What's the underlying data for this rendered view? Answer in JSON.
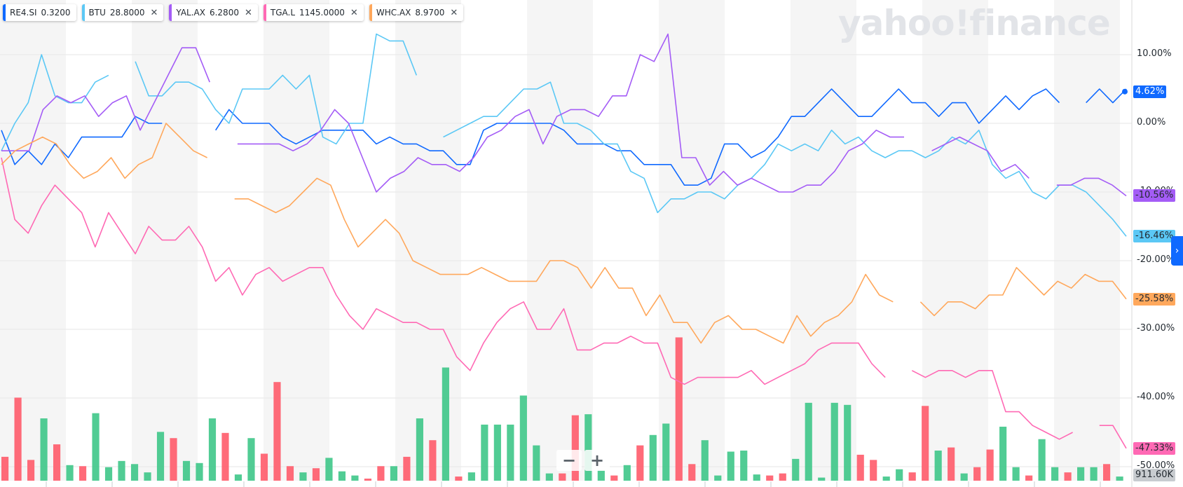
{
  "legend": [
    {
      "symbol": "RE4.SI",
      "price": "0.3200",
      "color": "#0f69ff",
      "closable": false
    },
    {
      "symbol": "BTU",
      "price": "28.8000",
      "color": "#5bc8f5",
      "closable": true
    },
    {
      "symbol": "YAL.AX",
      "price": "6.2800",
      "color": "#a45cf6",
      "closable": true
    },
    {
      "symbol": "TGA.L",
      "price": "1145.0000",
      "color": "#ff69b4",
      "closable": true
    },
    {
      "symbol": "WHC.AX",
      "price": "8.9700",
      "color": "#ffa85c",
      "closable": true
    }
  ],
  "watermark": "yahoo!finance",
  "y_axis_labels": [
    "10.00%",
    "0.00%",
    "-10.00%",
    "-20.00%",
    "-30.00%",
    "-40.00%",
    "-50.00%"
  ],
  "last_value_badges": [
    {
      "text": "4.62%",
      "color": "#0f69ff",
      "text_color": "#ffffff",
      "value": 4.62
    },
    {
      "text": "-10.56%",
      "color": "#a45cf6",
      "text_color": "#232a31",
      "value": -10.56
    },
    {
      "text": "-16.46%",
      "color": "#5bc8f5",
      "text_color": "#232a31",
      "value": -16.46
    },
    {
      "text": "-25.58%",
      "color": "#ffa85c",
      "text_color": "#232a31",
      "value": -25.58
    },
    {
      "text": "-47.33%",
      "color": "#ff69b4",
      "text_color": "#232a31",
      "value": -47.33
    }
  ],
  "volume_badge": {
    "text": "911.60K",
    "color": "#c8ccd0"
  },
  "zoom": {
    "minus": "−",
    "plus": "+"
  },
  "expand_icon": "chevron-right-icon",
  "chart_data": {
    "type": "line",
    "ylim": [
      -52,
      17
    ],
    "grid": true,
    "series": [
      {
        "name": "RE4.SI",
        "color": "#0f69ff",
        "values": [
          -1,
          -6,
          -4,
          -6,
          -3,
          -5,
          -2,
          -2,
          -2,
          -2,
          1,
          0,
          0,
          null,
          null,
          null,
          -1,
          2,
          0,
          0,
          0,
          -2,
          -3,
          -2,
          -1,
          -1,
          -1,
          -1,
          -3,
          -2,
          -3,
          -3,
          -4,
          -4,
          -6,
          -6,
          -1,
          0,
          0,
          0,
          0,
          0,
          -1,
          -3,
          -3,
          -3,
          -4,
          -4,
          -6,
          -6,
          -6,
          -9,
          -9,
          -8,
          -3,
          -3,
          -5,
          -4,
          -2,
          1,
          1,
          3,
          5,
          3,
          1,
          1,
          3,
          5,
          3,
          3,
          1,
          3,
          3,
          0,
          2,
          4,
          2,
          4,
          5,
          3,
          null,
          3,
          5,
          3,
          5
        ]
      },
      {
        "name": "BTU",
        "color": "#5bc8f5",
        "values": [
          -4,
          0,
          3,
          10,
          4,
          3,
          3,
          6,
          7,
          null,
          9,
          4,
          4,
          6,
          6,
          5,
          2,
          0,
          5,
          5,
          5,
          7,
          5,
          7,
          -2,
          -3,
          0,
          0,
          13,
          12,
          12,
          7,
          null,
          -2,
          -1,
          0,
          1,
          1,
          3,
          5,
          5,
          6,
          0,
          0,
          -1,
          -3,
          -3,
          -7,
          -8,
          -13,
          -11,
          -11,
          -10,
          -10,
          -11,
          -9,
          -8,
          -6,
          -3,
          -4,
          -3,
          -4,
          -1,
          -3,
          -2,
          -4,
          -5,
          -4,
          -4,
          -5,
          -4,
          -2,
          -3,
          -1,
          -6,
          -8,
          -7,
          -10,
          -11,
          -9,
          -9,
          -10,
          -12,
          -14,
          -16.46
        ]
      },
      {
        "name": "YAL.AX",
        "color": "#a45cf6",
        "values": [
          -4,
          -4,
          -4,
          2,
          4,
          3,
          4,
          1,
          3,
          4,
          -1,
          3,
          7,
          11,
          11,
          6,
          null,
          -3,
          -3,
          -3,
          -3,
          -4,
          -3,
          -1,
          2,
          0,
          -5,
          -10,
          -8,
          -7,
          -5,
          -6,
          -6,
          -7,
          -5,
          -2,
          -1,
          1,
          2,
          -3,
          1,
          2,
          2,
          1,
          4,
          4,
          10,
          9,
          13,
          -5,
          -5,
          -9,
          -7,
          -9,
          -8,
          -9,
          -10,
          -10,
          -9,
          -9,
          -7,
          -4,
          -3,
          -1,
          -2,
          -2,
          null,
          -4,
          -3,
          -2,
          -3,
          -4,
          -7,
          -6,
          -8,
          null,
          -9,
          -9,
          -8,
          -8,
          -9,
          -10.56
        ]
      },
      {
        "name": "TGA.L",
        "color": "#ff69b4",
        "values": [
          -5,
          -14,
          -16,
          -12,
          -9,
          -11,
          -13,
          -18,
          -13,
          -16,
          -19,
          -15,
          -17,
          -17,
          -15,
          -18,
          -23,
          -21,
          -25,
          -22,
          -21,
          -23,
          -22,
          -21,
          -21,
          -25,
          -28,
          -30,
          -27,
          -28,
          -29,
          -29,
          -30,
          -30,
          -34,
          -36,
          -32,
          -29,
          -27,
          -26,
          -30,
          -30,
          -27,
          -33,
          -33,
          -32,
          -32,
          -31,
          -32,
          -32,
          -37,
          -38,
          -37,
          -37,
          -37,
          -37,
          -36,
          -38,
          -37,
          -36,
          -35,
          -33,
          -32,
          -32,
          -32,
          -35,
          -37,
          null,
          -36,
          -37,
          -36,
          -36,
          -37,
          -36,
          -36,
          -42,
          -42,
          -44,
          -45,
          -46,
          -45,
          null,
          -44,
          -44,
          -47.33
        ]
      },
      {
        "name": "WHC.AX",
        "color": "#ffa85c",
        "values": [
          -6,
          -4,
          -3,
          -2,
          -3,
          -6,
          -8,
          -7,
          -5,
          -8,
          -6,
          -5,
          0,
          -2,
          -4,
          -5,
          null,
          -11,
          -11,
          -12,
          -13,
          -12,
          -10,
          -8,
          -9,
          -14,
          -18,
          -16,
          -14,
          -16,
          -20,
          -21,
          -22,
          -22,
          -22,
          -21,
          -22,
          -23,
          -23,
          -23,
          -20,
          -20,
          -21,
          -24,
          -21,
          -24,
          -24,
          -28,
          -25,
          -29,
          -29,
          -32,
          -29,
          -28,
          -30,
          -30,
          -31,
          -32,
          -28,
          -31,
          -29,
          -28,
          -26,
          -22,
          -25,
          -26,
          null,
          -26,
          -28,
          -26,
          -26,
          -27,
          -25,
          -25,
          -21,
          -23,
          -25,
          -23,
          -24,
          -22,
          -23,
          -23,
          -25.58
        ]
      }
    ],
    "volume": {
      "max": 1100000,
      "bars": [
        {
          "v": 230000,
          "up": false
        },
        {
          "v": 800000,
          "up": false
        },
        {
          "v": 200000,
          "up": false
        },
        {
          "v": 600000,
          "up": true
        },
        {
          "v": 350000,
          "up": false
        },
        {
          "v": 150000,
          "up": true
        },
        {
          "v": 140000,
          "up": false
        },
        {
          "v": 650000,
          "up": true
        },
        {
          "v": 130000,
          "up": true
        },
        {
          "v": 190000,
          "up": true
        },
        {
          "v": 160000,
          "up": true
        },
        {
          "v": 80000,
          "up": true
        },
        {
          "v": 470000,
          "up": true
        },
        {
          "v": 410000,
          "up": false
        },
        {
          "v": 190000,
          "up": true
        },
        {
          "v": 170000,
          "up": true
        },
        {
          "v": 600000,
          "up": true
        },
        {
          "v": 460000,
          "up": false
        },
        {
          "v": 60000,
          "up": true
        },
        {
          "v": 410000,
          "up": true
        },
        {
          "v": 260000,
          "up": false
        },
        {
          "v": 950000,
          "up": false
        },
        {
          "v": 140000,
          "up": false
        },
        {
          "v": 80000,
          "up": true
        },
        {
          "v": 120000,
          "up": false
        },
        {
          "v": 220000,
          "up": true
        },
        {
          "v": 90000,
          "up": true
        },
        {
          "v": 50000,
          "up": true
        },
        {
          "v": 20000,
          "up": false
        },
        {
          "v": 140000,
          "up": false
        },
        {
          "v": 140000,
          "up": true
        },
        {
          "v": 230000,
          "up": false
        },
        {
          "v": 600000,
          "up": true
        },
        {
          "v": 390000,
          "up": false
        },
        {
          "v": 1090000,
          "up": true
        },
        {
          "v": 40000,
          "up": false
        },
        {
          "v": 80000,
          "up": true
        },
        {
          "v": 540000,
          "up": true
        },
        {
          "v": 540000,
          "up": true
        },
        {
          "v": 540000,
          "up": true
        },
        {
          "v": 820000,
          "up": true
        },
        {
          "v": 340000,
          "up": true
        },
        {
          "v": 70000,
          "up": true
        },
        {
          "v": 70000,
          "up": false
        },
        {
          "v": 630000,
          "up": false
        },
        {
          "v": 640000,
          "up": true
        },
        {
          "v": 100000,
          "up": true
        },
        {
          "v": 50000,
          "up": false
        },
        {
          "v": 150000,
          "up": true
        },
        {
          "v": 340000,
          "up": false
        },
        {
          "v": 440000,
          "up": true
        },
        {
          "v": 550000,
          "up": true
        },
        {
          "v": 1380000,
          "up": false
        },
        {
          "v": 160000,
          "up": false
        },
        {
          "v": 390000,
          "up": true
        },
        {
          "v": 50000,
          "up": true
        },
        {
          "v": 280000,
          "up": true
        },
        {
          "v": 290000,
          "up": true
        },
        {
          "v": 60000,
          "up": true
        },
        {
          "v": 50000,
          "up": false
        },
        {
          "v": 70000,
          "up": false
        },
        {
          "v": 210000,
          "up": true
        },
        {
          "v": 750000,
          "up": true
        },
        {
          "v": 30000,
          "up": true
        },
        {
          "v": 750000,
          "up": true
        },
        {
          "v": 730000,
          "up": true
        },
        {
          "v": 250000,
          "up": false
        },
        {
          "v": 200000,
          "up": false
        },
        {
          "v": 40000,
          "up": true
        },
        {
          "v": 110000,
          "up": true
        },
        {
          "v": 80000,
          "up": false
        },
        {
          "v": 720000,
          "up": false
        },
        {
          "v": 290000,
          "up": true
        },
        {
          "v": 320000,
          "up": false
        },
        {
          "v": 70000,
          "up": true
        },
        {
          "v": 130000,
          "up": false
        },
        {
          "v": 300000,
          "up": false
        },
        {
          "v": 520000,
          "up": true
        },
        {
          "v": 130000,
          "up": true
        },
        {
          "v": 50000,
          "up": false
        },
        {
          "v": 400000,
          "up": true
        },
        {
          "v": 130000,
          "up": true
        },
        {
          "v": 80000,
          "up": false
        },
        {
          "v": 130000,
          "up": true
        },
        {
          "v": 130000,
          "up": true
        },
        {
          "v": 160000,
          "up": false
        },
        {
          "v": 40000,
          "up": true
        }
      ]
    }
  }
}
